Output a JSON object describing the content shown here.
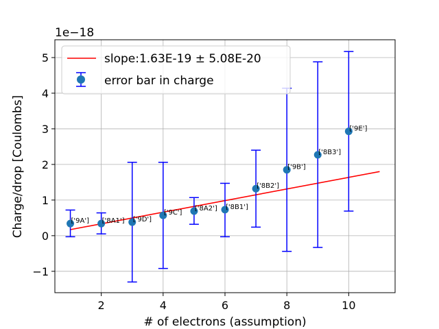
{
  "chart_data": {
    "type": "scatter",
    "xlabel": "# of electrons (assumption)",
    "ylabel": "Charge/drop [Coulombs]",
    "y_offset_label": "1e−18",
    "xlim": [
      0.5,
      11.5
    ],
    "ylim": [
      -1.6,
      5.5
    ],
    "xticks": [
      2,
      4,
      6,
      8,
      10
    ],
    "yticks": [
      -1,
      0,
      1,
      2,
      3,
      4,
      5
    ],
    "ytick_labels": [
      "−1",
      "0",
      "1",
      "2",
      "3",
      "4",
      "5"
    ],
    "grid": true,
    "legend_position": "top-left",
    "colors": {
      "points": "#1f77b4",
      "errorbars": "#0000ff",
      "fit": "#ff0000"
    },
    "fit_line": {
      "name": "slope:1.63E-19 ± 5.08E-20",
      "x": [
        1,
        11
      ],
      "y": [
        0.17,
        1.8
      ]
    },
    "series": [
      {
        "name": "error bar in charge",
        "points": [
          {
            "x": 1,
            "y": 0.34,
            "ylow": -0.03,
            "yhigh": 0.72,
            "label": "['9A']"
          },
          {
            "x": 2,
            "y": 0.34,
            "ylow": 0.05,
            "yhigh": 0.64,
            "label": "['8A1']"
          },
          {
            "x": 3,
            "y": 0.38,
            "ylow": -1.3,
            "yhigh": 2.06,
            "label": "['9D']"
          },
          {
            "x": 4,
            "y": 0.57,
            "ylow": -0.92,
            "yhigh": 2.06,
            "label": "['9C']"
          },
          {
            "x": 5,
            "y": 0.69,
            "ylow": 0.32,
            "yhigh": 1.07,
            "label": "['8A2']"
          },
          {
            "x": 6,
            "y": 0.73,
            "ylow": -0.03,
            "yhigh": 1.47,
            "label": "['8B1']"
          },
          {
            "x": 7,
            "y": 1.32,
            "ylow": 0.24,
            "yhigh": 2.4,
            "label": "['8B2']"
          },
          {
            "x": 8,
            "y": 1.85,
            "ylow": -0.44,
            "yhigh": 4.14,
            "label": "['9B']"
          },
          {
            "x": 9,
            "y": 2.27,
            "ylow": -0.33,
            "yhigh": 4.88,
            "label": "['8B3']"
          },
          {
            "x": 10,
            "y": 2.93,
            "ylow": 0.69,
            "yhigh": 5.17,
            "label": "['9E']"
          }
        ]
      }
    ]
  }
}
